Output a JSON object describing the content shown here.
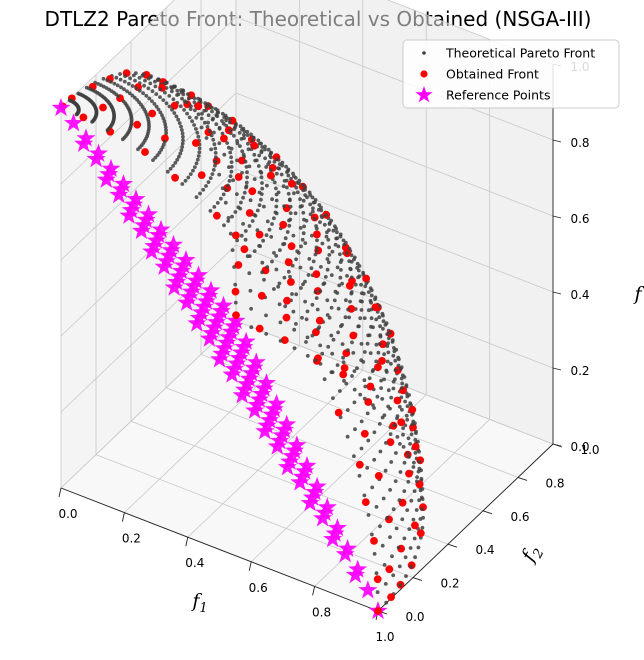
{
  "chart_data": {
    "type": "scatter",
    "projection": "3d",
    "title": "DTLZ2 Pareto Front: Theoretical vs Obtained (NSGA-III)",
    "xlabel": "f1",
    "ylabel": "f2",
    "zlabel": "f",
    "xlim": [
      0,
      1
    ],
    "ylim": [
      0,
      1
    ],
    "zlim": [
      0,
      1
    ],
    "xticks": [
      "0.0",
      "0.2",
      "0.4",
      "0.6",
      "0.8",
      "1.0"
    ],
    "yticks": [
      "0.0",
      "0.2",
      "0.4",
      "0.6",
      "0.8",
      "1.0"
    ],
    "zticks": [
      "0.0",
      "0.2",
      "0.4",
      "0.6",
      "0.8",
      "1.0"
    ],
    "grid": true,
    "legend_position": "top-right",
    "series": [
      {
        "name": "Theoretical Pareto Front",
        "marker": "point",
        "color": "#404040",
        "surface": "f1^2 + f2^2 + f3^2 = 1",
        "theta_deg_range": [
          0,
          90
        ],
        "phi_deg_range": [
          0,
          90
        ],
        "grid_steps": 32
      },
      {
        "name": "Obtained Front",
        "marker": "circle",
        "color": "#ff0000",
        "surface": "f1^2 + f2^2 + f3^2 = 1",
        "reference_directions_divisions": 14
      },
      {
        "name": "Reference Points",
        "marker": "star",
        "color": "#ff00ff",
        "plane": "f1 + f2 + f3 = 1",
        "divisions": 14
      }
    ]
  }
}
